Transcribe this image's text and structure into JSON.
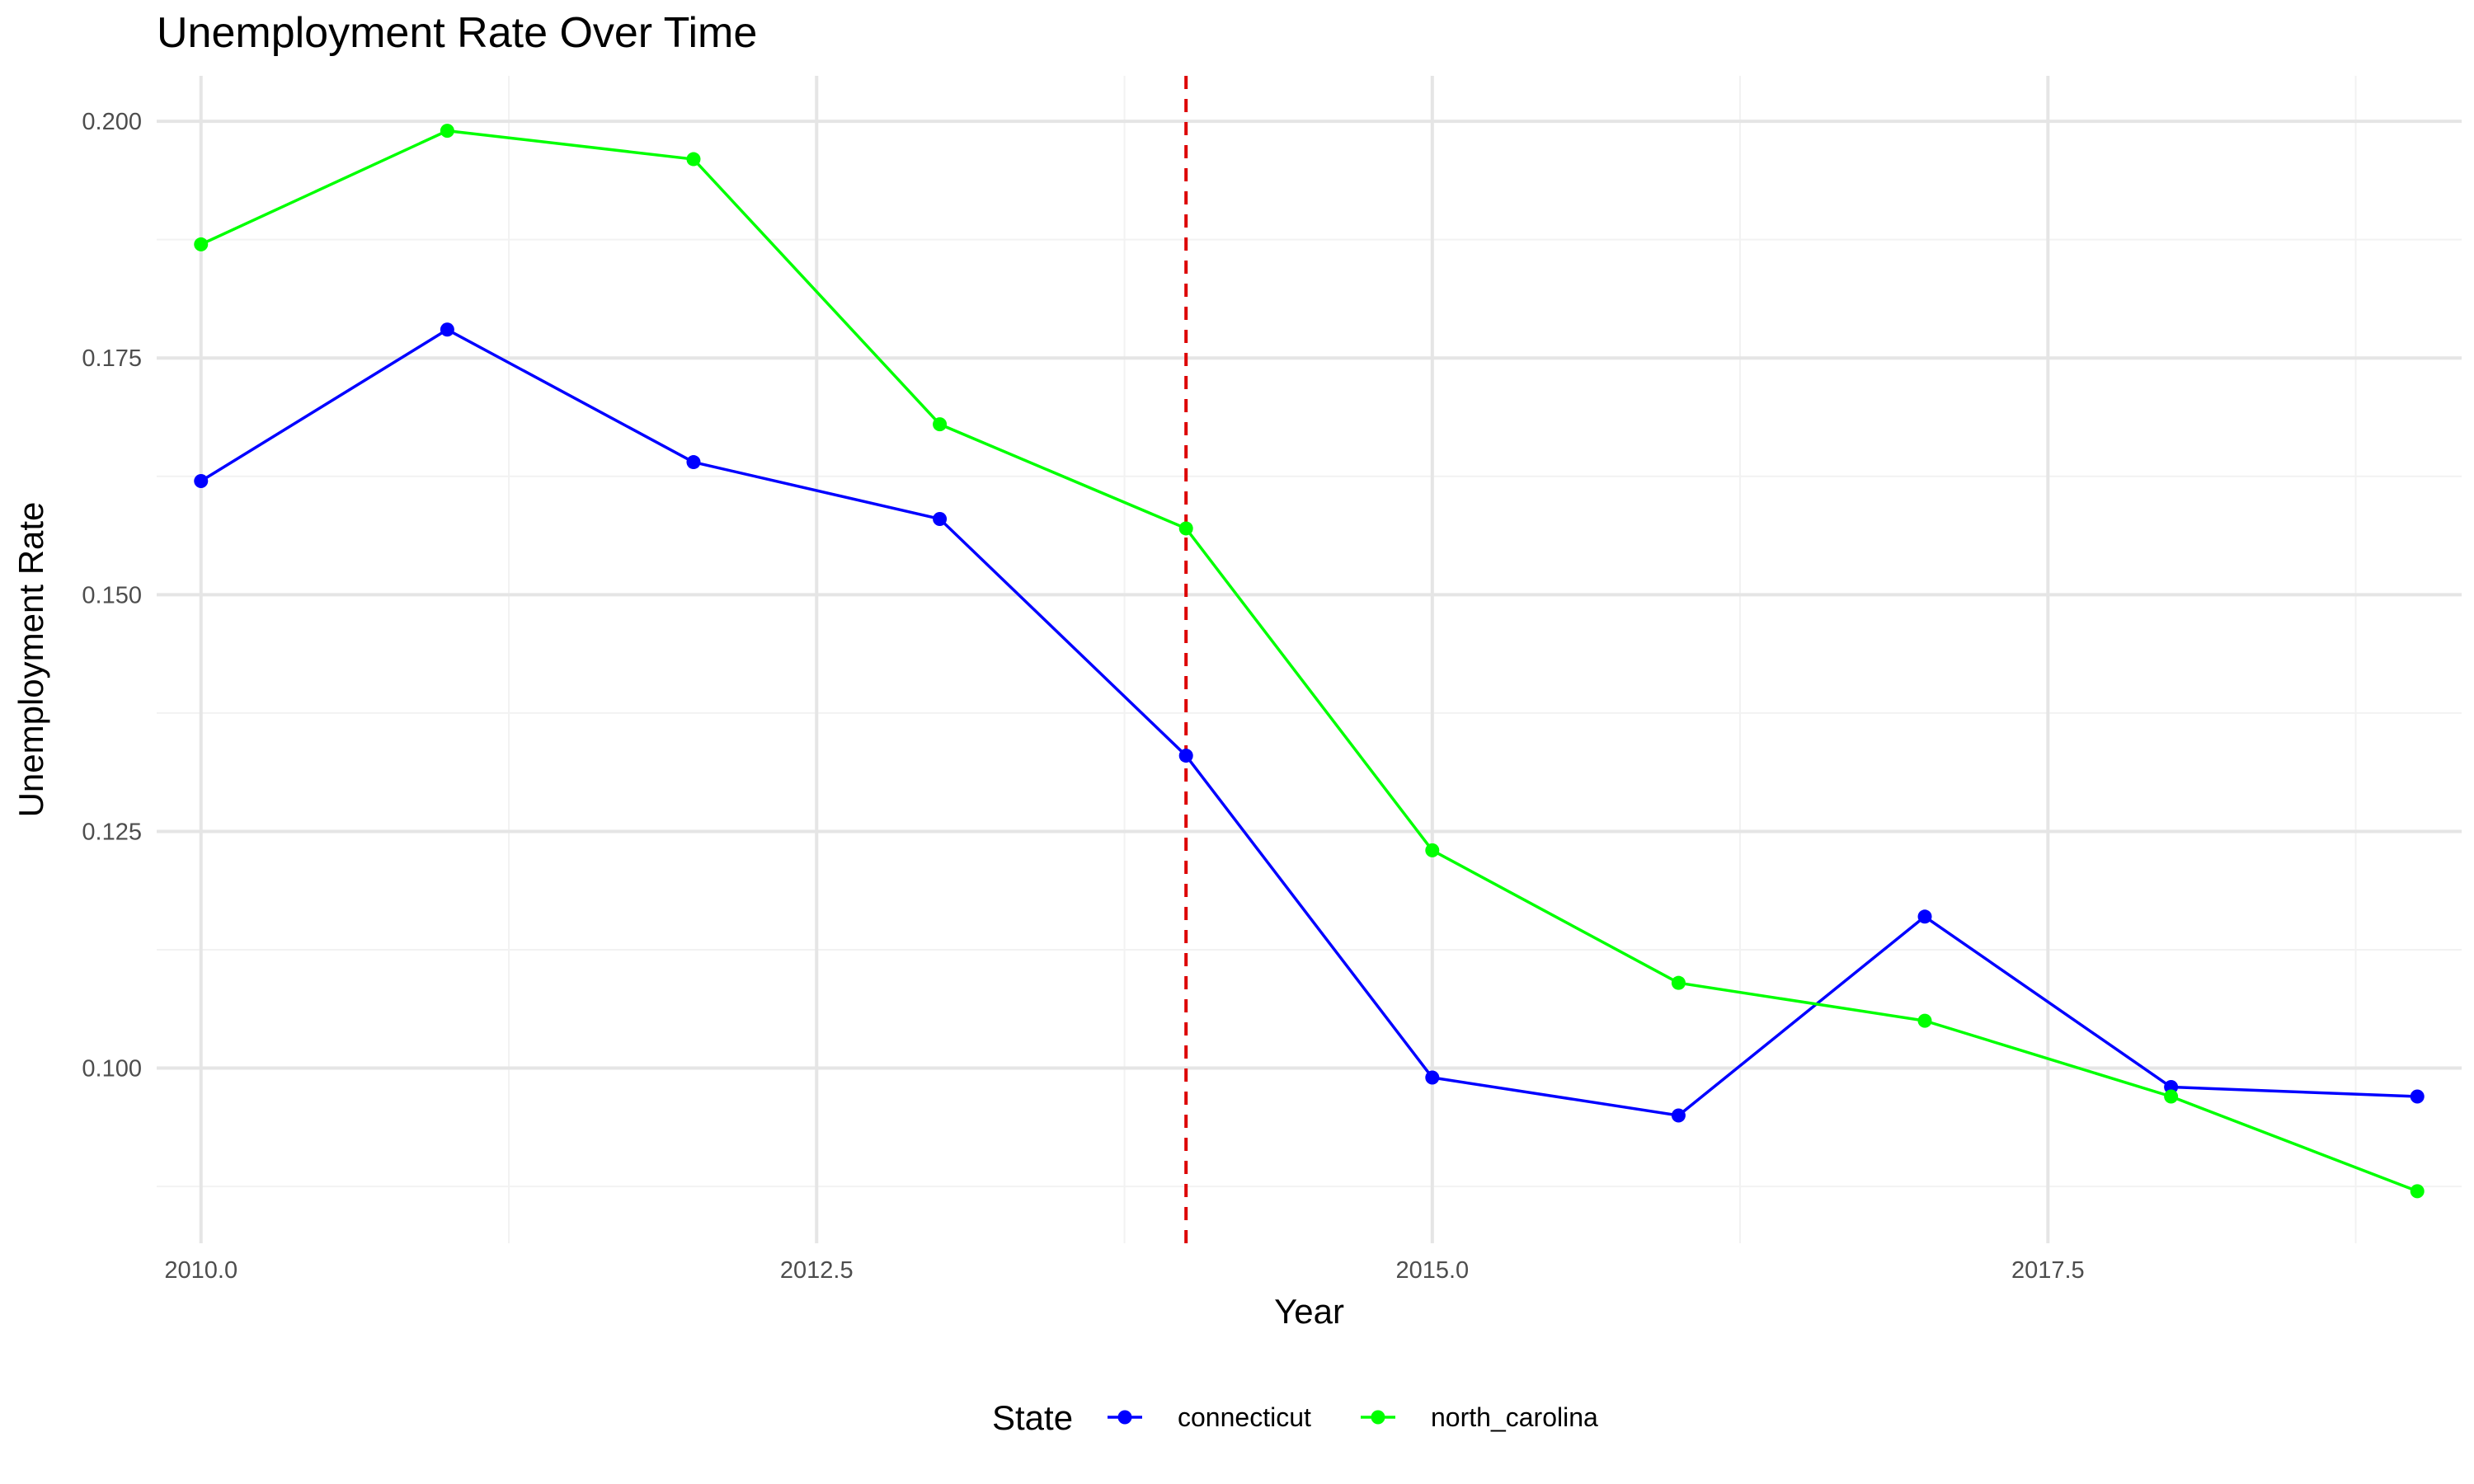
{
  "chart_data": {
    "type": "line",
    "title": "Unemployment Rate Over Time",
    "xlabel": "Year",
    "ylabel": "Unemployment Rate",
    "xlim": [
      2009.82,
      2019.18
    ],
    "ylim": [
      0.0815,
      0.2048
    ],
    "x_ticks": [
      2010.0,
      2012.5,
      2015.0,
      2017.5
    ],
    "x_tick_labels": [
      "2010.0",
      "2012.5",
      "2015.0",
      "2017.5"
    ],
    "y_ticks": [
      0.1,
      0.125,
      0.15,
      0.175,
      0.2
    ],
    "y_tick_labels": [
      "0.100",
      "0.125",
      "0.150",
      "0.175",
      "0.200"
    ],
    "x": [
      2010,
      2011,
      2012,
      2013,
      2014,
      2015,
      2016,
      2017,
      2018,
      2019
    ],
    "series": [
      {
        "name": "connecticut",
        "color": "#0000ff",
        "values": [
          0.162,
          0.178,
          0.164,
          0.158,
          0.133,
          0.099,
          0.095,
          0.116,
          0.098,
          0.097
        ]
      },
      {
        "name": "north_carolina",
        "color": "#00ff00",
        "values": [
          0.187,
          0.199,
          0.196,
          0.168,
          0.157,
          0.123,
          0.109,
          0.105,
          0.097,
          0.087
        ]
      }
    ],
    "vline": {
      "x": 2014,
      "color": "#dd0000",
      "style": "dashed"
    },
    "grid": true,
    "legend": {
      "title": "State",
      "position": "bottom"
    }
  }
}
